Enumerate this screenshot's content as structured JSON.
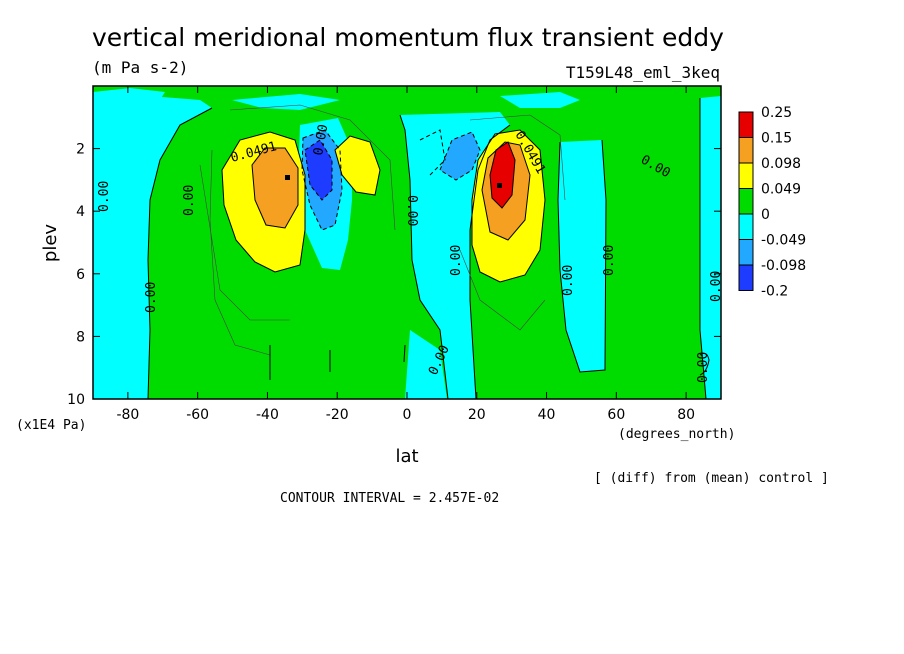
{
  "chart_data": {
    "type": "heatmap",
    "title": "vertical meridional momentum flux transient eddy",
    "units": "(m Pa s-2)",
    "run_label": "T159L48_eml_3keq",
    "xlabel": "lat",
    "x_units": "(degrees_north)",
    "ylabel": "plev",
    "y_units": "(x1E4 Pa)",
    "xlim": [
      -90,
      90
    ],
    "ylim": [
      10,
      0
    ],
    "x_ticks": [
      -80,
      -60,
      -40,
      -20,
      0,
      20,
      40,
      60,
      80
    ],
    "x_tick_labels": [
      "-80",
      "-60",
      "-40",
      "-20",
      "0",
      "20",
      "40",
      "60",
      "80"
    ],
    "y_ticks": [
      2,
      4,
      6,
      8,
      10
    ],
    "y_tick_labels": [
      "2",
      "4",
      "6",
      "8",
      "10"
    ],
    "contour_interval": "CONTOUR INTERVAL = 2.457E-02",
    "note": "[ (diff) from (mean) control ]",
    "colorbar": {
      "levels": [
        "0.25",
        "0.15",
        "0.098",
        "0.049",
        "0",
        "-0.049",
        "-0.098",
        "-0.2"
      ],
      "colors": [
        "#e60000",
        "#f5a020",
        "#ffff00",
        "#00dc00",
        "#00ffff",
        "#22a8ff",
        "#1e3cff"
      ]
    },
    "features": [
      {
        "name": "sh-positive",
        "lat": -33,
        "plev": 3.0,
        "peak": 0.15
      },
      {
        "name": "sh-negative",
        "lat": -25,
        "plev": 2.5,
        "peak": -0.2
      },
      {
        "name": "sh-weak-positive",
        "lat": -17,
        "plev": 2.3,
        "peak": 0.098
      },
      {
        "name": "nh-negative",
        "lat": 16,
        "plev": 2.2,
        "peak": -0.098
      },
      {
        "name": "nh-positive",
        "lat": 27,
        "plev": 2.9,
        "peak": 0.25
      }
    ],
    "contour_labels": [
      "0.0491",
      "0.00",
      "0.00",
      "0.0491",
      "0.00",
      "0.00",
      "0.00",
      "0.00",
      "0.00",
      "0.00",
      "0.00",
      "0.00",
      "0.00",
      "0.00"
    ]
  }
}
